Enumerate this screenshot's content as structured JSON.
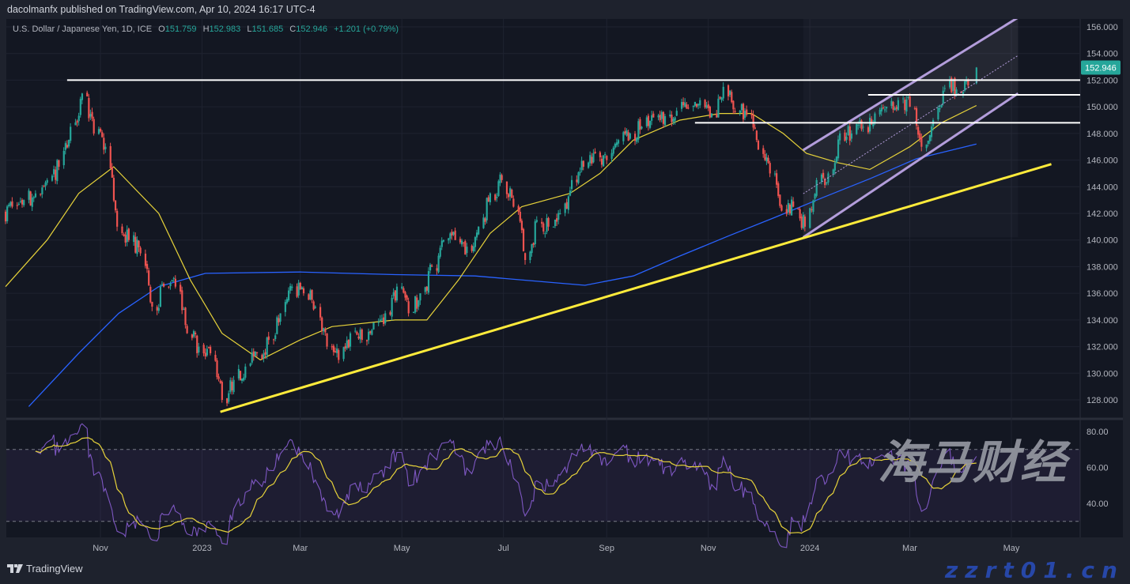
{
  "header": {
    "published": "dacolmanfx published on TradingView.com, Apr 10, 2024 16:17 UTC-4"
  },
  "legend": {
    "symbol": "U.S. Dollar / Japanese Yen, 1D, ICE",
    "o_label": "O",
    "o": "151.759",
    "h_label": "H",
    "h": "152.983",
    "l_label": "L",
    "l": "151.685",
    "c_label": "C",
    "c": "152.946",
    "change": "+1.201 (+0.79%)"
  },
  "footer": {
    "brand": "TradingView",
    "logo_icon": "tradingview-logo-icon"
  },
  "watermark": {
    "cn": "海马财经",
    "url": "zzrt01.cn"
  },
  "colors": {
    "up": "#26a69a",
    "down": "#ef5350",
    "ma_fast": "#e6d23a",
    "ma_slow": "#2962ff",
    "trendline": "#ffeb3b",
    "channel": "#b39ddb",
    "rsi": "#7e57c2",
    "rsi_ma": "#e6d23a",
    "level": "#ffffff"
  },
  "chart_data": {
    "type": "candlestick",
    "ylim": [
      127,
      157
    ],
    "price_ticks": [
      "156.000",
      "154.000",
      "152.000",
      "150.000",
      "148.000",
      "146.000",
      "144.000",
      "142.000",
      "140.000",
      "138.000",
      "136.000",
      "134.000",
      "132.000",
      "130.000",
      "128.000"
    ],
    "last_price": "152.946",
    "time_ticks": [
      {
        "label": "Nov",
        "date": "2022-11-01"
      },
      {
        "label": "2023",
        "date": "2023-01-01"
      },
      {
        "label": "Mar",
        "date": "2023-03-01"
      },
      {
        "label": "May",
        "date": "2023-05-01"
      },
      {
        "label": "Jul",
        "date": "2023-07-01"
      },
      {
        "label": "Sep",
        "date": "2023-09-01"
      },
      {
        "label": "Nov",
        "date": "2023-11-01"
      },
      {
        "label": "2024",
        "date": "2024-01-01"
      },
      {
        "label": "Mar",
        "date": "2024-03-01"
      },
      {
        "label": "May",
        "date": "2024-05-01"
      }
    ],
    "weekly_closes": [
      [
        "2022-09-09",
        142.5
      ],
      [
        "2022-09-16",
        143
      ],
      [
        "2022-09-23",
        143.5
      ],
      [
        "2022-09-30",
        144.5
      ],
      [
        "2022-10-07",
        145.5
      ],
      [
        "2022-10-14",
        148.5
      ],
      [
        "2022-10-21",
        151
      ],
      [
        "2022-10-28",
        148
      ],
      [
        "2022-11-04",
        147
      ],
      [
        "2022-11-11",
        141
      ],
      [
        "2022-11-18",
        140
      ],
      [
        "2022-11-25",
        139
      ],
      [
        "2022-12-02",
        135
      ],
      [
        "2022-12-09",
        136.5
      ],
      [
        "2022-12-16",
        136.5
      ],
      [
        "2022-12-23",
        133
      ],
      [
        "2022-12-30",
        132
      ],
      [
        "2023-01-06",
        131.5
      ],
      [
        "2023-01-13",
        128
      ],
      [
        "2023-01-20",
        129.5
      ],
      [
        "2023-01-27",
        130.5
      ],
      [
        "2023-02-03",
        131.5
      ],
      [
        "2023-02-10",
        132.5
      ],
      [
        "2023-02-17",
        134.5
      ],
      [
        "2023-02-24",
        136.5
      ],
      [
        "2023-03-03",
        136
      ],
      [
        "2023-03-10",
        135
      ],
      [
        "2023-03-17",
        132
      ],
      [
        "2023-03-24",
        131
      ],
      [
        "2023-03-31",
        133
      ],
      [
        "2023-04-07",
        132.5
      ],
      [
        "2023-04-14",
        133.8
      ],
      [
        "2023-04-21",
        134.5
      ],
      [
        "2023-04-28",
        136.5
      ],
      [
        "2023-05-05",
        134.5
      ],
      [
        "2023-05-12",
        136
      ],
      [
        "2023-05-19",
        138
      ],
      [
        "2023-05-26",
        140
      ],
      [
        "2023-06-02",
        140
      ],
      [
        "2023-06-09",
        139.5
      ],
      [
        "2023-06-16",
        141
      ],
      [
        "2023-06-23",
        143.5
      ],
      [
        "2023-06-30",
        144.5
      ],
      [
        "2023-07-07",
        142.5
      ],
      [
        "2023-07-14",
        138.5
      ],
      [
        "2023-07-21",
        141.5
      ],
      [
        "2023-07-28",
        141
      ],
      [
        "2023-08-04",
        142
      ],
      [
        "2023-08-11",
        144.5
      ],
      [
        "2023-08-18",
        145.5
      ],
      [
        "2023-08-25",
        146.5
      ],
      [
        "2023-09-01",
        146
      ],
      [
        "2023-09-08",
        147.5
      ],
      [
        "2023-09-15",
        148
      ],
      [
        "2023-09-22",
        148.5
      ],
      [
        "2023-09-29",
        149.2
      ],
      [
        "2023-10-06",
        149.3
      ],
      [
        "2023-10-13",
        149.7
      ],
      [
        "2023-10-20",
        149.9
      ],
      [
        "2023-10-27",
        150.5
      ],
      [
        "2023-11-03",
        149.5
      ],
      [
        "2023-11-10",
        151.5
      ],
      [
        "2023-11-17",
        149.6
      ],
      [
        "2023-11-24",
        149.4
      ],
      [
        "2023-12-01",
        146.8
      ],
      [
        "2023-12-08",
        145
      ],
      [
        "2023-12-15",
        142.2
      ],
      [
        "2023-12-22",
        142.5
      ],
      [
        "2023-12-29",
        141
      ],
      [
        "2024-01-05",
        144.5
      ],
      [
        "2024-01-12",
        145
      ],
      [
        "2024-01-19",
        148
      ],
      [
        "2024-01-26",
        148
      ],
      [
        "2024-02-02",
        148.5
      ],
      [
        "2024-02-09",
        149.5
      ],
      [
        "2024-02-16",
        150
      ],
      [
        "2024-02-23",
        150.5
      ],
      [
        "2024-03-01",
        150
      ],
      [
        "2024-03-08",
        147
      ],
      [
        "2024-03-15",
        149
      ],
      [
        "2024-03-22",
        151.4
      ],
      [
        "2024-03-29",
        151.3
      ],
      [
        "2024-04-05",
        151.6
      ]
    ],
    "last_candle": {
      "date": "2024-04-10",
      "open": 151.759,
      "high": 152.983,
      "low": 151.685,
      "close": 152.946
    },
    "ma_fast": [
      [
        "2022-09-05",
        136.5
      ],
      [
        "2022-09-30",
        140
      ],
      [
        "2022-10-19",
        143.5
      ],
      [
        "2022-11-09",
        145.5
      ],
      [
        "2022-12-06",
        142
      ],
      [
        "2022-12-25",
        137
      ],
      [
        "2023-01-13",
        133
      ],
      [
        "2023-02-05",
        131
      ],
      [
        "2023-03-01",
        132.5
      ],
      [
        "2023-03-20",
        133.5
      ],
      [
        "2023-04-27",
        134
      ],
      [
        "2023-05-16",
        134
      ],
      [
        "2023-06-04",
        137
      ],
      [
        "2023-06-23",
        140.5
      ],
      [
        "2023-07-12",
        142.5
      ],
      [
        "2023-08-10",
        143.5
      ],
      [
        "2023-08-28",
        145
      ],
      [
        "2023-09-17",
        147.5
      ],
      [
        "2023-10-15",
        149
      ],
      [
        "2023-11-08",
        149.5
      ],
      [
        "2023-11-27",
        149.5
      ],
      [
        "2023-12-16",
        148
      ],
      [
        "2023-12-30",
        146.5
      ],
      [
        "2024-01-18",
        145.8
      ],
      [
        "2024-02-06",
        145.3
      ],
      [
        "2024-03-01",
        147
      ],
      [
        "2024-03-20",
        148.8
      ],
      [
        "2024-04-10",
        150.1
      ]
    ],
    "ma_slow": [
      [
        "2022-09-19",
        127.5
      ],
      [
        "2022-10-19",
        131.5
      ],
      [
        "2022-11-12",
        134.5
      ],
      [
        "2022-12-06",
        136.5
      ],
      [
        "2023-01-03",
        137.5
      ],
      [
        "2023-03-01",
        137.6
      ],
      [
        "2023-04-27",
        137.4
      ],
      [
        "2023-06-14",
        137.3
      ],
      [
        "2023-08-19",
        136.6
      ],
      [
        "2023-09-17",
        137.3
      ],
      [
        "2023-10-15",
        138.8
      ],
      [
        "2023-11-13",
        140.3
      ],
      [
        "2023-12-11",
        141.7
      ],
      [
        "2024-01-09",
        143.2
      ],
      [
        "2024-02-06",
        144.6
      ],
      [
        "2024-03-05",
        146.1
      ],
      [
        "2024-04-10",
        147.2
      ]
    ],
    "drawings": {
      "horizontal_levels": [
        {
          "price": 152.0,
          "from": "2022-10-12"
        },
        {
          "price": 150.9,
          "from": "2024-02-05"
        },
        {
          "price": 148.8,
          "from": "2023-10-24"
        }
      ],
      "trendline": [
        [
          "2023-01-12",
          127.1
        ],
        [
          "2024-05-25",
          145.7
        ]
      ],
      "channel": {
        "from": "2023-12-28",
        "to": "2024-05-05",
        "upper": [
          146.75,
          156.7
        ],
        "lower": [
          140.2,
          151.0
        ]
      }
    },
    "rsi": {
      "ticks": [
        "80.00",
        "60.00",
        "40.00"
      ],
      "upper_band": 70,
      "lower_band": 30,
      "ylim": [
        25,
        85
      ]
    }
  }
}
